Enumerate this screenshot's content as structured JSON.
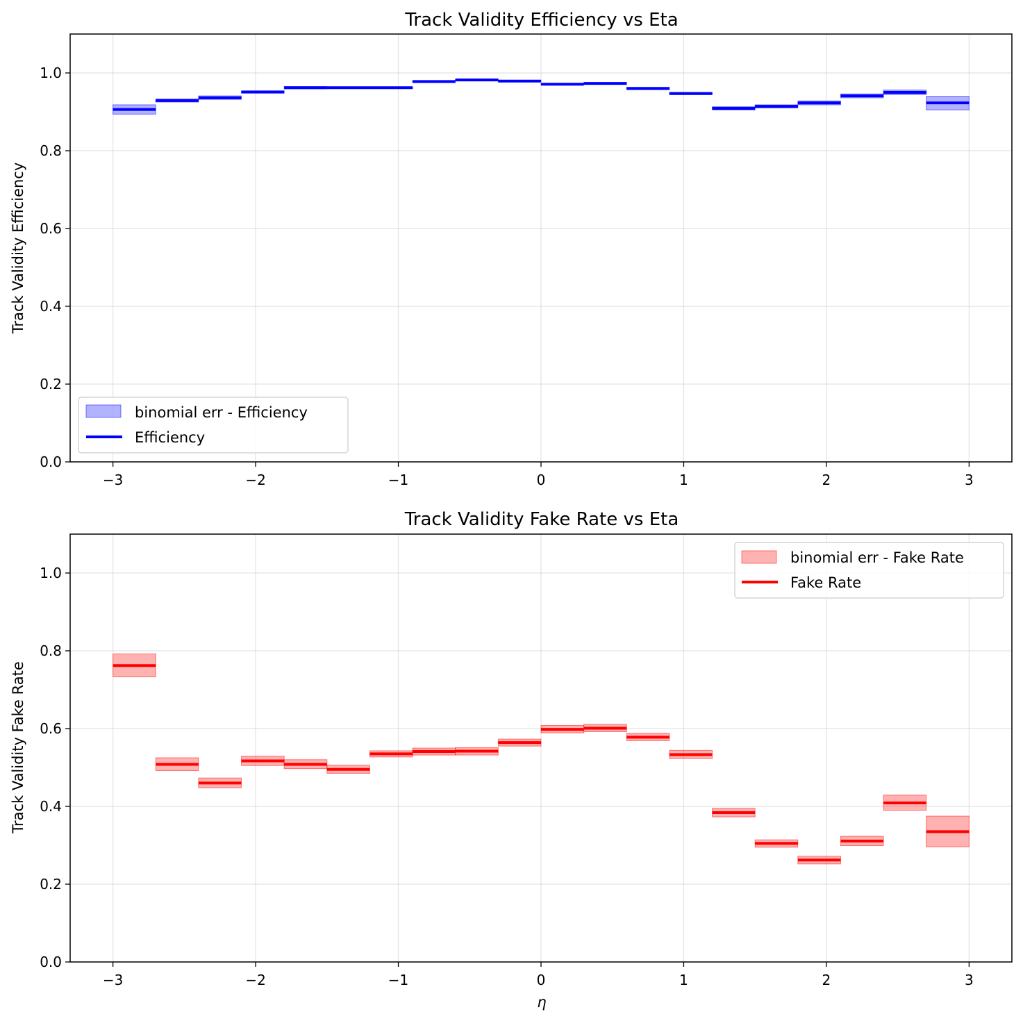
{
  "chart_data": [
    {
      "type": "step",
      "title": "Track Validity Efficiency vs Eta",
      "xlabel": "",
      "ylabel": "Track Validity Efficiency",
      "xlim": [
        -3.3,
        3.3
      ],
      "ylim": [
        0.0,
        1.1
      ],
      "xticks": [
        -3,
        -2,
        -1,
        0,
        1,
        2,
        3
      ],
      "xtick_labels": [
        "−3",
        "−2",
        "−1",
        "0",
        "1",
        "2",
        "3"
      ],
      "yticks": [
        0.0,
        0.2,
        0.4,
        0.6,
        0.8,
        1.0
      ],
      "ytick_labels": [
        "0.0",
        "0.2",
        "0.4",
        "0.6",
        "0.8",
        "1.0"
      ],
      "grid": true,
      "legend_position": "lower-left",
      "color": "#0000ff",
      "band_color": "#0000ff",
      "bin_edges": [
        -3.0,
        -2.7,
        -2.4,
        -2.1,
        -1.8,
        -1.5,
        -1.2,
        -0.9,
        -0.6,
        -0.3,
        0.0,
        0.3,
        0.6,
        0.9,
        1.2,
        1.5,
        1.8,
        2.1,
        2.4,
        2.7,
        3.0
      ],
      "series": [
        {
          "name": "Efficiency",
          "values": [
            0.906,
            0.929,
            0.936,
            0.951,
            0.962,
            0.962,
            0.962,
            0.978,
            0.982,
            0.979,
            0.971,
            0.973,
            0.96,
            0.947,
            0.909,
            0.914,
            0.923,
            0.941,
            0.95,
            0.923
          ]
        }
      ],
      "band": {
        "name": "binomial err - Efficiency",
        "lower": [
          0.894,
          0.925,
          0.932,
          0.948,
          0.959,
          0.96,
          0.96,
          0.976,
          0.98,
          0.977,
          0.969,
          0.971,
          0.957,
          0.944,
          0.905,
          0.91,
          0.918,
          0.936,
          0.944,
          0.905
        ],
        "upper": [
          0.918,
          0.933,
          0.941,
          0.954,
          0.965,
          0.964,
          0.964,
          0.98,
          0.984,
          0.981,
          0.973,
          0.975,
          0.963,
          0.95,
          0.913,
          0.918,
          0.928,
          0.946,
          0.956,
          0.94
        ]
      }
    },
    {
      "type": "step",
      "title": "Track Validity Fake Rate vs Eta",
      "xlabel": "η",
      "ylabel": "Track Validity Fake Rate",
      "xlim": [
        -3.3,
        3.3
      ],
      "ylim": [
        0.0,
        1.1
      ],
      "xticks": [
        -3,
        -2,
        -1,
        0,
        1,
        2,
        3
      ],
      "xtick_labels": [
        "−3",
        "−2",
        "−1",
        "0",
        "1",
        "2",
        "3"
      ],
      "yticks": [
        0.0,
        0.2,
        0.4,
        0.6,
        0.8,
        1.0
      ],
      "ytick_labels": [
        "0.0",
        "0.2",
        "0.4",
        "0.6",
        "0.8",
        "1.0"
      ],
      "grid": true,
      "legend_position": "upper-right",
      "color": "#ff0000",
      "band_color": "#ff0000",
      "bin_edges": [
        -3.0,
        -2.7,
        -2.4,
        -2.1,
        -1.8,
        -1.5,
        -1.2,
        -0.9,
        -0.6,
        -0.3,
        0.0,
        0.3,
        0.6,
        0.9,
        1.2,
        1.5,
        1.8,
        2.1,
        2.4,
        2.7,
        3.0
      ],
      "series": [
        {
          "name": "Fake Rate",
          "values": [
            0.762,
            0.508,
            0.46,
            0.517,
            0.508,
            0.495,
            0.535,
            0.541,
            0.542,
            0.564,
            0.598,
            0.601,
            0.578,
            0.533,
            0.384,
            0.305,
            0.262,
            0.311,
            0.409,
            0.335
          ]
        }
      ],
      "band": {
        "name": "binomial err - Fake Rate",
        "lower": [
          0.733,
          0.492,
          0.448,
          0.505,
          0.497,
          0.485,
          0.527,
          0.532,
          0.532,
          0.555,
          0.589,
          0.592,
          0.569,
          0.523,
          0.373,
          0.295,
          0.252,
          0.299,
          0.39,
          0.296
        ],
        "upper": [
          0.792,
          0.525,
          0.473,
          0.529,
          0.52,
          0.506,
          0.543,
          0.55,
          0.551,
          0.573,
          0.608,
          0.611,
          0.588,
          0.544,
          0.395,
          0.314,
          0.272,
          0.323,
          0.429,
          0.375
        ]
      }
    }
  ]
}
